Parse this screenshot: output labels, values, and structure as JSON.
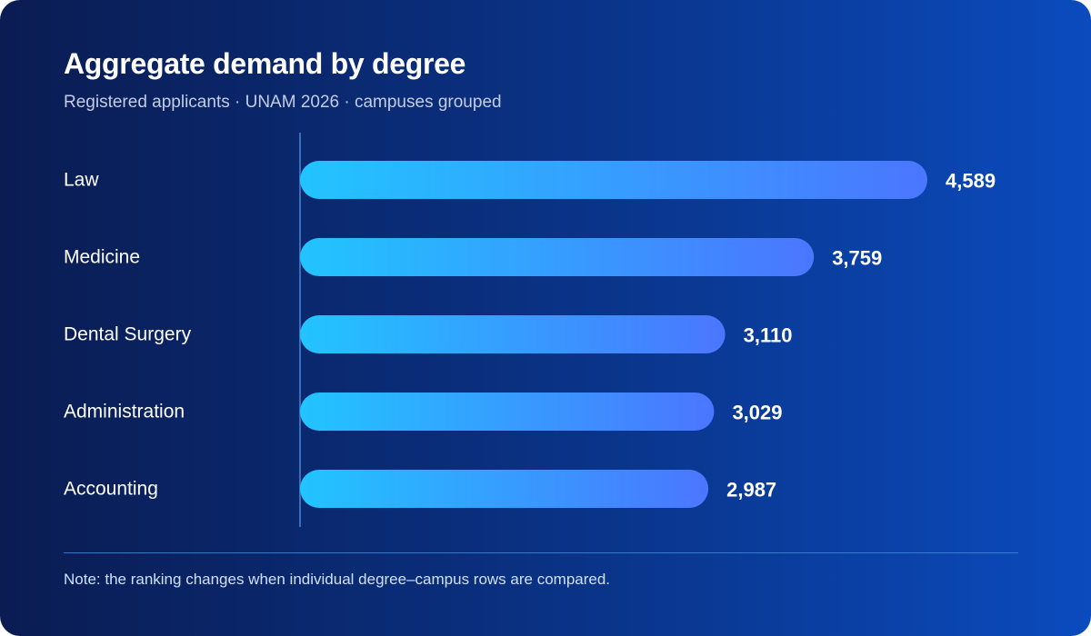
{
  "title": "Aggregate demand by degree",
  "subtitle": "Registered applicants · UNAM 2026 · campuses grouped",
  "note": "Note: the ranking changes when individual degree–campus rows are compared.",
  "colors": {
    "background_start": "#0a1c52",
    "background_end": "#0b4bbd",
    "bar_start": "#22c4ff",
    "bar_end": "#4b76ff",
    "axis_line": "#4a86d4"
  },
  "chart_data": {
    "type": "bar",
    "orientation": "horizontal",
    "categories": [
      "Law",
      "Medicine",
      "Dental Surgery",
      "Administration",
      "Accounting"
    ],
    "values": [
      4589,
      3759,
      3110,
      3029,
      2987
    ],
    "value_labels": [
      "4,589",
      "3,759",
      "3,110",
      "3,029",
      "2,987"
    ],
    "xlim": [
      0,
      4589
    ],
    "grid": false,
    "legend": "none"
  }
}
